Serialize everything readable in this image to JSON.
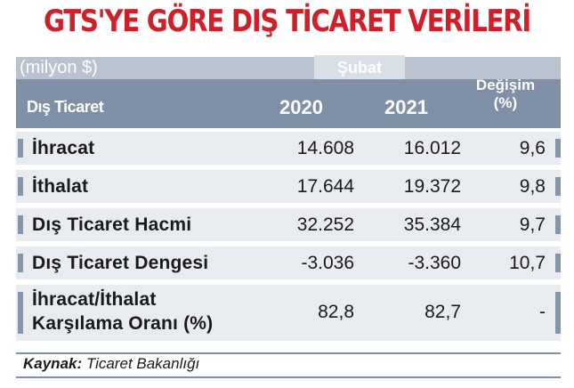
{
  "title": "GTS'YE GÖRE DIŞ TİCARET VERİLERİ",
  "unit_label": "(milyon $)",
  "month_label": "Şubat",
  "header": {
    "row_label": "Dış Ticaret",
    "year_1": "2020",
    "year_2": "2021",
    "change_line1": "Değişim",
    "change_line2": "(%)"
  },
  "rows": [
    {
      "label": "İhracat",
      "v2020": "14.608",
      "v2021": "16.012",
      "change": "9,6"
    },
    {
      "label": "İthalat",
      "v2020": "17.644",
      "v2021": "19.372",
      "change": "9,8"
    },
    {
      "label": "Dış Ticaret Hacmi",
      "v2020": "32.252",
      "v2021": "35.384",
      "change": "9,7"
    },
    {
      "label": "Dış Ticaret Dengesi",
      "v2020": "-3.036",
      "v2021": "-3.360",
      "change": "10,7"
    },
    {
      "label_line1": "İhracat/İthalat",
      "label_line2": "Karşılama Oranı (%)",
      "v2020": "82,8",
      "v2021": "82,7",
      "change": "-"
    }
  ],
  "source": {
    "prefix": "Kaynak:",
    "text": " Ticaret Bakanlığı"
  },
  "colors": {
    "title": "#d11f2a",
    "header": "#7f90a6",
    "row_bg": "#e8ebef",
    "unit_bar": "#b9c3cf"
  }
}
